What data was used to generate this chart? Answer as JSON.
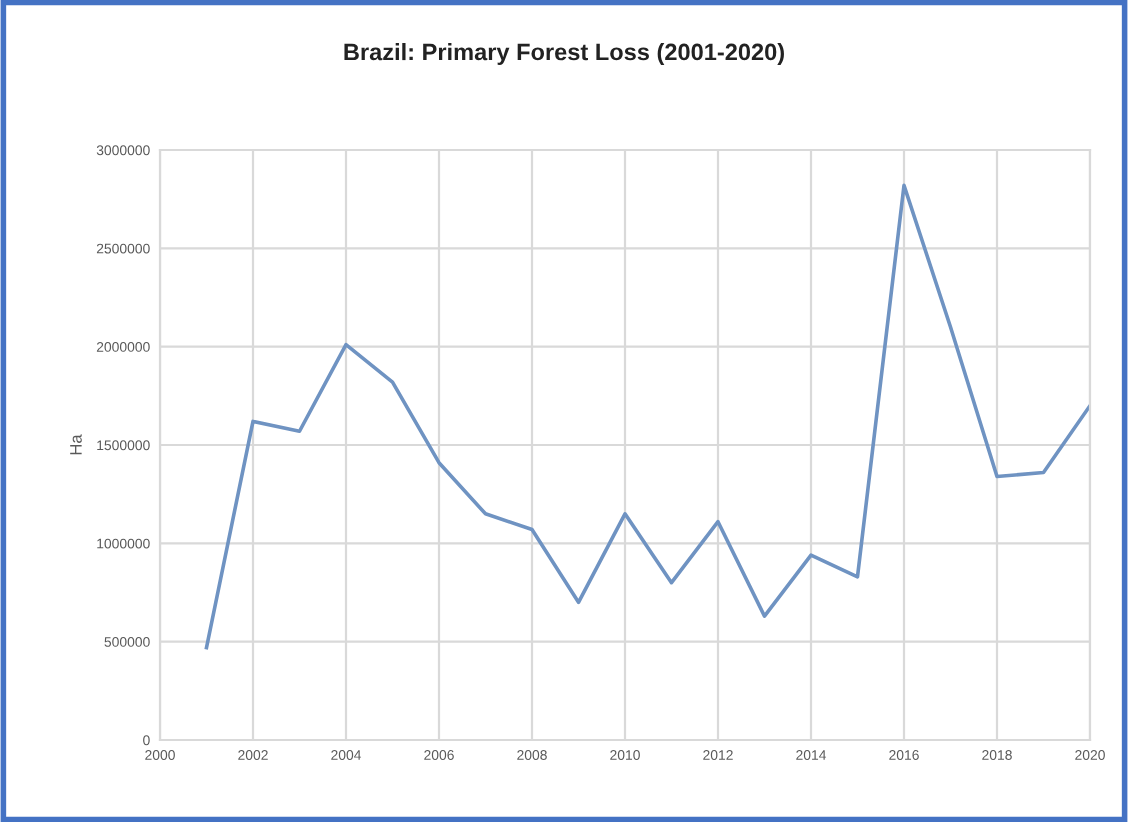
{
  "chart_data": {
    "type": "line",
    "title": "Brazil: Primary Forest Loss (2001-2020)",
    "ylabel": "Ha",
    "x": [
      2001,
      2002,
      2003,
      2004,
      2005,
      2006,
      2007,
      2008,
      2009,
      2010,
      2011,
      2012,
      2013,
      2014,
      2015,
      2016,
      2017,
      2018,
      2019,
      2020
    ],
    "series": [
      {
        "color": "#6f93c2",
        "values": [
          470000,
          1620000,
          1570000,
          2010000,
          1820000,
          1410000,
          1150000,
          1070000,
          700000,
          1150000,
          800000,
          1110000,
          630000,
          940000,
          830000,
          2820000,
          2100000,
          1340000,
          1360000,
          1700000
        ]
      }
    ],
    "xlim": [
      2000,
      2020
    ],
    "xticks": [
      2000,
      2002,
      2004,
      2006,
      2008,
      2010,
      2012,
      2014,
      2016,
      2018,
      2020
    ],
    "ylim": [
      0,
      3000000
    ],
    "yticks": [
      0,
      500000,
      1000000,
      1500000,
      2000000,
      2500000,
      3000000
    ],
    "grid": true,
    "legend": false,
    "marker": "none",
    "line_style": "solid"
  }
}
